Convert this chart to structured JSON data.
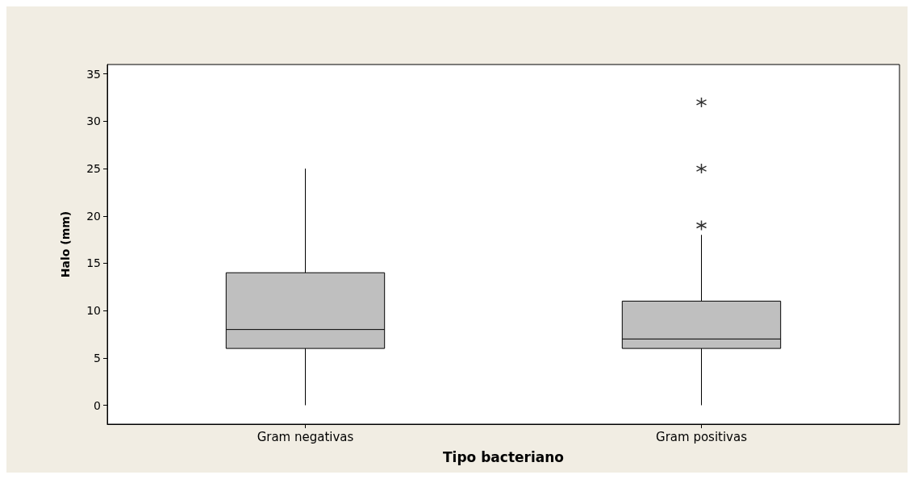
{
  "chart_data": {
    "type": "box",
    "xlabel": "Tipo bacteriano",
    "ylabel": "Halo (mm)",
    "categories": [
      "Gram negativas",
      "Gram positivas"
    ],
    "boxes": [
      {
        "low": 0,
        "q1": 6,
        "median": 8,
        "q3": 14,
        "high": 25
      },
      {
        "low": 0,
        "q1": 6,
        "median": 7,
        "q3": 11,
        "high": 18,
        "outliers": [
          19,
          25,
          32
        ]
      }
    ],
    "color": "#bfbfbf",
    "ylim": [
      -2,
      36
    ],
    "yticks": [
      0,
      5,
      10,
      15,
      20,
      25,
      30,
      35
    ],
    "grid": false
  }
}
